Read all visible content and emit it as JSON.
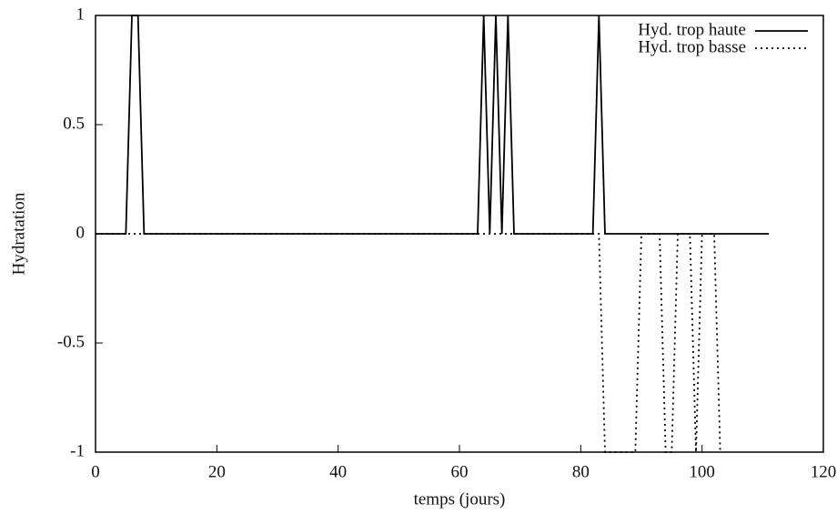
{
  "chart_data": {
    "type": "line",
    "x_label": "temps (jours)",
    "y_label": "Hydratation",
    "xlim": [
      0,
      120
    ],
    "ylim": [
      -1,
      1
    ],
    "xticks": [
      0,
      20,
      40,
      60,
      80,
      100,
      120
    ],
    "yticks": [
      -1,
      -0.5,
      0,
      0.5,
      1
    ],
    "legend": "upper right",
    "series": [
      {
        "name": "Hyd. trop haute",
        "color": "#000000",
        "style": "solid",
        "x": [
          0,
          5,
          6,
          7,
          8,
          63,
          64,
          65,
          66,
          67,
          68,
          69,
          82,
          83,
          84,
          111
        ],
        "values": [
          0,
          0,
          1,
          1,
          0,
          0,
          1,
          0,
          1,
          0,
          1,
          0,
          0,
          1,
          0,
          0
        ]
      },
      {
        "name": "Hyd. trop basse",
        "color": "#000000",
        "style": "dotted",
        "x": [
          0,
          83,
          84,
          89,
          90,
          93,
          94,
          95,
          96,
          98,
          99,
          100,
          102,
          103
        ],
        "values": [
          0,
          0,
          -1,
          -1,
          0,
          0,
          -1,
          -1,
          0,
          0,
          -1,
          0,
          0,
          -1
        ]
      }
    ]
  }
}
